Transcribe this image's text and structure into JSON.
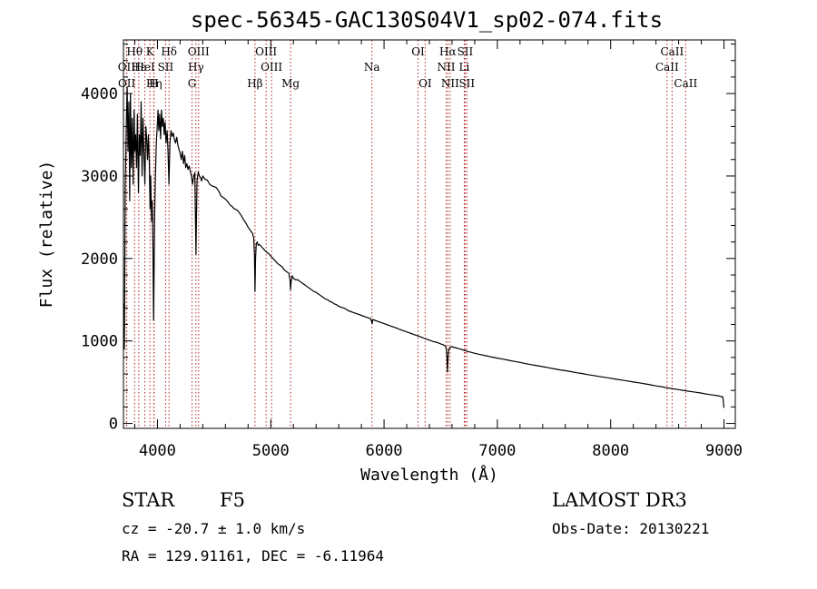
{
  "chart_data": {
    "type": "line",
    "title": "spec-56345-GAC130S04V1_sp02-074.fits",
    "xlabel": "Wavelength (Å)",
    "ylabel": "Flux (relative)",
    "xlim": [
      3700,
      9100
    ],
    "ylim": [
      -60,
      4650
    ],
    "xticks": [
      4000,
      5000,
      6000,
      7000,
      8000,
      9000
    ],
    "yticks": [
      0,
      1000,
      2000,
      3000,
      4000
    ],
    "line_color": "#000000",
    "marker_color": "#b22222",
    "series": [
      {
        "name": "flux",
        "points": [
          [
            3700,
            1450
          ],
          [
            3708,
            900
          ],
          [
            3716,
            2900
          ],
          [
            3725,
            3600
          ],
          [
            3733,
            4080
          ],
          [
            3740,
            3300
          ],
          [
            3748,
            3900
          ],
          [
            3755,
            2700
          ],
          [
            3762,
            4000
          ],
          [
            3770,
            3100
          ],
          [
            3778,
            3700
          ],
          [
            3786,
            2900
          ],
          [
            3794,
            3800
          ],
          [
            3800,
            3300
          ],
          [
            3808,
            3500
          ],
          [
            3815,
            3100
          ],
          [
            3823,
            3750
          ],
          [
            3832,
            2800
          ],
          [
            3840,
            3500
          ],
          [
            3848,
            3250
          ],
          [
            3856,
            3900
          ],
          [
            3864,
            3000
          ],
          [
            3872,
            3700
          ],
          [
            3880,
            3300
          ],
          [
            3889,
            2900
          ],
          [
            3898,
            3600
          ],
          [
            3905,
            3450
          ],
          [
            3912,
            3200
          ],
          [
            3920,
            3500
          ],
          [
            3928,
            3150
          ],
          [
            3935,
            2600
          ],
          [
            3940,
            3000
          ],
          [
            3948,
            2450
          ],
          [
            3954,
            2700
          ],
          [
            3960,
            2100
          ],
          [
            3966,
            1250
          ],
          [
            3970,
            1800
          ],
          [
            3975,
            2500
          ],
          [
            3982,
            3000
          ],
          [
            3990,
            3400
          ],
          [
            3998,
            3600
          ],
          [
            4005,
            3800
          ],
          [
            4012,
            3550
          ],
          [
            4020,
            3750
          ],
          [
            4028,
            3450
          ],
          [
            4036,
            3800
          ],
          [
            4044,
            3600
          ],
          [
            4052,
            3700
          ],
          [
            4060,
            3500
          ],
          [
            4068,
            3650
          ],
          [
            4076,
            3400
          ],
          [
            4085,
            3550
          ],
          [
            4093,
            3300
          ],
          [
            4101,
            2900
          ],
          [
            4110,
            3400
          ],
          [
            4120,
            3550
          ],
          [
            4130,
            3480
          ],
          [
            4140,
            3520
          ],
          [
            4150,
            3440
          ],
          [
            4160,
            3400
          ],
          [
            4170,
            3470
          ],
          [
            4180,
            3380
          ],
          [
            4190,
            3320
          ],
          [
            4200,
            3280
          ],
          [
            4210,
            3200
          ],
          [
            4220,
            3300
          ],
          [
            4230,
            3150
          ],
          [
            4240,
            3250
          ],
          [
            4250,
            3100
          ],
          [
            4260,
            3150
          ],
          [
            4270,
            3080
          ],
          [
            4280,
            3120
          ],
          [
            4290,
            3060
          ],
          [
            4300,
            3000
          ],
          [
            4310,
            2900
          ],
          [
            4320,
            3000
          ],
          [
            4330,
            3040
          ],
          [
            4335,
            2500
          ],
          [
            4340,
            2050
          ],
          [
            4345,
            2550
          ],
          [
            4350,
            2950
          ],
          [
            4360,
            3050
          ],
          [
            4370,
            3000
          ],
          [
            4380,
            2980
          ],
          [
            4390,
            2940
          ],
          [
            4400,
            3000
          ],
          [
            4420,
            2960
          ],
          [
            4440,
            2950
          ],
          [
            4460,
            2900
          ],
          [
            4480,
            2880
          ],
          [
            4500,
            2870
          ],
          [
            4520,
            2860
          ],
          [
            4540,
            2820
          ],
          [
            4560,
            2760
          ],
          [
            4580,
            2740
          ],
          [
            4600,
            2720
          ],
          [
            4620,
            2690
          ],
          [
            4640,
            2650
          ],
          [
            4660,
            2630
          ],
          [
            4680,
            2600
          ],
          [
            4700,
            2590
          ],
          [
            4720,
            2560
          ],
          [
            4740,
            2520
          ],
          [
            4760,
            2470
          ],
          [
            4780,
            2430
          ],
          [
            4800,
            2380
          ],
          [
            4820,
            2340
          ],
          [
            4840,
            2300
          ],
          [
            4850,
            2250
          ],
          [
            4856,
            2050
          ],
          [
            4861,
            1600
          ],
          [
            4866,
            2000
          ],
          [
            4872,
            2180
          ],
          [
            4880,
            2200
          ],
          [
            4890,
            2160
          ],
          [
            4900,
            2170
          ],
          [
            4920,
            2140
          ],
          [
            4940,
            2110
          ],
          [
            4960,
            2080
          ],
          [
            4980,
            2060
          ],
          [
            5000,
            2030
          ],
          [
            5020,
            2000
          ],
          [
            5040,
            1970
          ],
          [
            5060,
            1940
          ],
          [
            5080,
            1920
          ],
          [
            5100,
            1900
          ],
          [
            5120,
            1860
          ],
          [
            5140,
            1840
          ],
          [
            5160,
            1820
          ],
          [
            5170,
            1740
          ],
          [
            5175,
            1620
          ],
          [
            5180,
            1720
          ],
          [
            5190,
            1790
          ],
          [
            5200,
            1760
          ],
          [
            5220,
            1740
          ],
          [
            5240,
            1740
          ],
          [
            5260,
            1720
          ],
          [
            5280,
            1700
          ],
          [
            5300,
            1680
          ],
          [
            5320,
            1660
          ],
          [
            5340,
            1640
          ],
          [
            5360,
            1620
          ],
          [
            5380,
            1600
          ],
          [
            5400,
            1590
          ],
          [
            5420,
            1570
          ],
          [
            5440,
            1550
          ],
          [
            5460,
            1530
          ],
          [
            5480,
            1510
          ],
          [
            5500,
            1500
          ],
          [
            5520,
            1480
          ],
          [
            5540,
            1470
          ],
          [
            5560,
            1450
          ],
          [
            5580,
            1440
          ],
          [
            5600,
            1420
          ],
          [
            5620,
            1410
          ],
          [
            5640,
            1400
          ],
          [
            5660,
            1390
          ],
          [
            5680,
            1370
          ],
          [
            5700,
            1360
          ],
          [
            5720,
            1350
          ],
          [
            5740,
            1340
          ],
          [
            5760,
            1330
          ],
          [
            5780,
            1320
          ],
          [
            5800,
            1310
          ],
          [
            5820,
            1300
          ],
          [
            5840,
            1290
          ],
          [
            5860,
            1280
          ],
          [
            5880,
            1270
          ],
          [
            5890,
            1240
          ],
          [
            5895,
            1210
          ],
          [
            5900,
            1260
          ],
          [
            5920,
            1250
          ],
          [
            5940,
            1240
          ],
          [
            5960,
            1230
          ],
          [
            5980,
            1220
          ],
          [
            6000,
            1210
          ],
          [
            6020,
            1200
          ],
          [
            6040,
            1190
          ],
          [
            6060,
            1180
          ],
          [
            6080,
            1170
          ],
          [
            6100,
            1160
          ],
          [
            6120,
            1150
          ],
          [
            6140,
            1140
          ],
          [
            6160,
            1130
          ],
          [
            6180,
            1120
          ],
          [
            6200,
            1110
          ],
          [
            6220,
            1100
          ],
          [
            6240,
            1090
          ],
          [
            6260,
            1080
          ],
          [
            6280,
            1070
          ],
          [
            6300,
            1060
          ],
          [
            6320,
            1050
          ],
          [
            6340,
            1040
          ],
          [
            6360,
            1030
          ],
          [
            6380,
            1020
          ],
          [
            6400,
            1010
          ],
          [
            6420,
            1000
          ],
          [
            6440,
            990
          ],
          [
            6460,
            985
          ],
          [
            6480,
            975
          ],
          [
            6500,
            965
          ],
          [
            6520,
            955
          ],
          [
            6540,
            940
          ],
          [
            6550,
            900
          ],
          [
            6555,
            820
          ],
          [
            6560,
            620
          ],
          [
            6565,
            780
          ],
          [
            6570,
            880
          ],
          [
            6580,
            920
          ],
          [
            6600,
            930
          ],
          [
            6620,
            920
          ],
          [
            6640,
            915
          ],
          [
            6660,
            905
          ],
          [
            6680,
            900
          ],
          [
            6700,
            890
          ],
          [
            6720,
            880
          ],
          [
            6740,
            872
          ],
          [
            6760,
            865
          ],
          [
            6780,
            858
          ],
          [
            6800,
            850
          ],
          [
            6850,
            835
          ],
          [
            6900,
            820
          ],
          [
            6950,
            805
          ],
          [
            7000,
            792
          ],
          [
            7050,
            780
          ],
          [
            7100,
            765
          ],
          [
            7150,
            752
          ],
          [
            7200,
            740
          ],
          [
            7250,
            725
          ],
          [
            7300,
            712
          ],
          [
            7350,
            700
          ],
          [
            7400,
            688
          ],
          [
            7450,
            675
          ],
          [
            7500,
            662
          ],
          [
            7550,
            650
          ],
          [
            7600,
            640
          ],
          [
            7650,
            628
          ],
          [
            7700,
            615
          ],
          [
            7750,
            605
          ],
          [
            7800,
            592
          ],
          [
            7850,
            580
          ],
          [
            7900,
            570
          ],
          [
            7950,
            558
          ],
          [
            8000,
            548
          ],
          [
            8050,
            535
          ],
          [
            8100,
            525
          ],
          [
            8150,
            514
          ],
          [
            8200,
            502
          ],
          [
            8250,
            492
          ],
          [
            8300,
            480
          ],
          [
            8350,
            468
          ],
          [
            8400,
            455
          ],
          [
            8450,
            445
          ],
          [
            8500,
            432
          ],
          [
            8550,
            420
          ],
          [
            8600,
            410
          ],
          [
            8650,
            398
          ],
          [
            8700,
            388
          ],
          [
            8750,
            378
          ],
          [
            8800,
            368
          ],
          [
            8850,
            355
          ],
          [
            8900,
            345
          ],
          [
            8950,
            335
          ],
          [
            8990,
            320
          ],
          [
            9000,
            190
          ]
        ]
      }
    ],
    "lines": [
      {
        "label": "Hθ",
        "x": 3798,
        "row": 0
      },
      {
        "label": "K",
        "x": 3934,
        "row": 0
      },
      {
        "label": "Hδ",
        "x": 4102,
        "row": 0
      },
      {
        "label": "OIII",
        "x": 4363,
        "row": 0
      },
      {
        "label": "OIII",
        "x": 4959,
        "row": 0
      },
      {
        "label": "OI",
        "x": 6300,
        "row": 0
      },
      {
        "label": "Hα",
        "x": 6563,
        "row": 0
      },
      {
        "label": "SII",
        "x": 6716,
        "row": 0
      },
      {
        "label": "CaII",
        "x": 8542,
        "row": 0
      },
      {
        "label": "OII",
        "x": 3727,
        "row": 1
      },
      {
        "label": "Hε",
        "x": 3835,
        "row": 1
      },
      {
        "label": "HeI",
        "x": 3889,
        "row": 1
      },
      {
        "label": "SII",
        "x": 4072,
        "row": 1
      },
      {
        "label": "Hγ",
        "x": 4340,
        "row": 1
      },
      {
        "label": "OIII",
        "x": 5007,
        "row": 1
      },
      {
        "label": "Na",
        "x": 5893,
        "row": 1
      },
      {
        "label": "NII",
        "x": 6548,
        "row": 1
      },
      {
        "label": "Li",
        "x": 6708,
        "row": 1
      },
      {
        "label": "CaII",
        "x": 8498,
        "row": 1
      },
      {
        "label": "OII",
        "x": 3729,
        "row": 2
      },
      {
        "label": "Hη",
        "x": 3970,
        "row": 2
      },
      {
        "label": "H",
        "x": 3968,
        "row": 2
      },
      {
        "label": "G",
        "x": 4305,
        "row": 2
      },
      {
        "label": "Hβ",
        "x": 4861,
        "row": 2
      },
      {
        "label": "Mg",
        "x": 5175,
        "row": 2
      },
      {
        "label": "OI",
        "x": 6363,
        "row": 2
      },
      {
        "label": "NII",
        "x": 6583,
        "row": 2
      },
      {
        "label": "SII",
        "x": 6731,
        "row": 2
      },
      {
        "label": "CaII",
        "x": 8662,
        "row": 2
      }
    ]
  },
  "info": {
    "object_class": "STAR",
    "subclass": "F5",
    "survey": "LAMOST DR3",
    "redshift": "cz = -20.7 ± 1.0 km/s",
    "obs_date": "Obs-Date: 20130221",
    "coords": "RA = 129.91161, DEC =  -6.11964"
  }
}
